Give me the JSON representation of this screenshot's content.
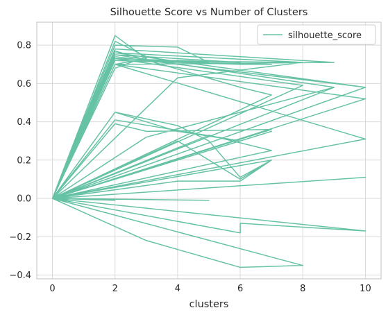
{
  "chart_data": {
    "type": "line",
    "title": "Silhouette Score vs Number of Clusters",
    "xlabel": "clusters",
    "ylabel": "",
    "xlim": [
      -0.5,
      10.5
    ],
    "ylim": [
      -0.42,
      0.92
    ],
    "xticks": [
      0,
      2,
      4,
      6,
      8,
      10
    ],
    "xtick_labels": [
      "0",
      "2",
      "4",
      "6",
      "8",
      "10"
    ],
    "yticks": [
      -0.4,
      -0.2,
      0.0,
      0.2,
      0.4,
      0.6,
      0.8
    ],
    "ytick_labels": [
      "−0.4",
      "−0.2",
      "0.0",
      "0.2",
      "0.4",
      "0.6",
      "0.8"
    ],
    "grid": true,
    "legend_position": "top-right",
    "colors": {
      "series": "#66c2a5",
      "grid": "#d9d9d9",
      "spine": "#cccccc",
      "text": "#262626",
      "legend_border": "#cccccc"
    },
    "series": [
      {
        "name": "silhouette_score",
        "x": [
          0,
          2,
          3,
          2,
          0,
          2,
          4,
          5,
          2,
          0,
          2,
          3,
          2,
          0,
          2,
          6,
          2,
          0,
          2,
          8,
          2,
          0,
          2,
          9,
          2,
          0,
          2,
          10,
          2,
          0,
          2,
          6,
          7,
          2,
          0,
          2,
          4,
          5,
          6,
          7,
          6,
          4,
          0,
          2,
          3,
          7,
          0,
          2,
          4,
          6,
          2,
          0,
          10,
          2,
          0,
          2,
          8,
          4,
          0,
          9,
          3,
          0,
          7,
          0,
          8,
          2,
          0,
          10,
          2,
          0,
          2,
          6,
          7,
          0,
          9,
          2,
          0,
          10,
          2,
          0,
          10,
          0,
          5,
          7,
          0,
          4,
          6,
          7,
          0,
          2,
          0,
          5,
          0,
          6,
          6,
          10,
          0,
          3,
          6,
          8,
          0
        ],
        "y": [
          0.0,
          0.85,
          0.73,
          0.7,
          0.0,
          0.8,
          0.79,
          0.71,
          0.72,
          0.0,
          0.82,
          0.74,
          0.68,
          0.0,
          0.75,
          0.71,
          0.73,
          0.0,
          0.76,
          0.71,
          0.72,
          0.0,
          0.78,
          0.71,
          0.7,
          0.0,
          0.74,
          0.58,
          0.74,
          0.0,
          0.72,
          0.7,
          0.7,
          0.72,
          0.0,
          0.45,
          0.38,
          0.3,
          0.11,
          0.2,
          0.1,
          0.3,
          0.0,
          0.39,
          0.35,
          0.36,
          0.0,
          0.45,
          0.35,
          0.3,
          0.41,
          0.0,
          0.58,
          0.76,
          0.0,
          0.72,
          0.71,
          0.63,
          0.0,
          0.58,
          0.32,
          0.0,
          0.35,
          0.0,
          0.59,
          0.73,
          0.0,
          0.52,
          0.7,
          0.0,
          0.77,
          0.58,
          0.54,
          0.0,
          0.58,
          0.75,
          0.0,
          0.31,
          0.7,
          0.0,
          0.11,
          0.0,
          0.33,
          0.25,
          0.0,
          0.09,
          0.09,
          0.2,
          0.0,
          -0.01,
          0.0,
          -0.01,
          0.0,
          -0.18,
          -0.13,
          -0.17,
          0.0,
          -0.22,
          -0.36,
          -0.35,
          0.0
        ]
      }
    ]
  }
}
